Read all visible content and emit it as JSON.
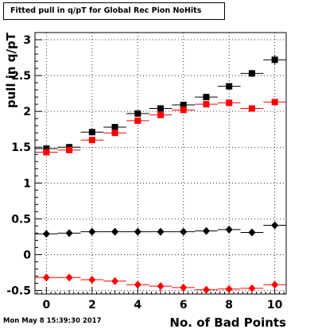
{
  "chart_data": {
    "type": "scatter",
    "title": "Fitted pull in q/pT for Global Rec Pion NoHits",
    "xlabel": "No. of Bad Points",
    "ylabel": "pull in q/pT",
    "xlim": [
      -0.5,
      10.5
    ],
    "ylim": [
      -0.55,
      3.1
    ],
    "x_ticks": [
      0,
      2,
      4,
      6,
      8,
      10
    ],
    "y_ticks": [
      -0.5,
      0,
      0.5,
      1,
      1.5,
      2,
      2.5,
      3
    ],
    "y_tick_labels": [
      "-0.5",
      "0",
      "0.5",
      "1",
      "1.5",
      "2",
      "2.5",
      "3"
    ],
    "grid": true,
    "series": [
      {
        "marker": "square",
        "color": "#000000",
        "x": [
          0,
          1,
          2,
          3,
          4,
          5,
          6,
          7,
          8,
          9,
          10
        ],
        "y": [
          1.48,
          1.5,
          1.71,
          1.78,
          1.97,
          2.04,
          2.09,
          2.2,
          2.35,
          2.53,
          2.72
        ],
        "yerr": [
          0.02,
          0.02,
          0.03,
          0.03,
          0.03,
          0.03,
          0.03,
          0.04,
          0.04,
          0.05,
          0.07
        ]
      },
      {
        "marker": "square",
        "color": "#ff0000",
        "x": [
          0,
          1,
          2,
          3,
          4,
          5,
          6,
          7,
          8,
          9,
          10
        ],
        "y": [
          1.43,
          1.46,
          1.6,
          1.7,
          1.87,
          1.95,
          2.02,
          2.1,
          2.12,
          2.04,
          2.13
        ],
        "yerr": [
          0.02,
          0.02,
          0.02,
          0.02,
          0.02,
          0.02,
          0.02,
          0.02,
          0.02,
          0.02,
          0.02
        ]
      },
      {
        "marker": "diamond",
        "color": "#000000",
        "x": [
          0,
          1,
          2,
          3,
          4,
          5,
          6,
          7,
          8,
          9,
          10
        ],
        "y": [
          0.29,
          0.3,
          0.32,
          0.32,
          0.32,
          0.32,
          0.32,
          0.33,
          0.35,
          0.31,
          0.41
        ],
        "yerr": [
          0.01,
          0.01,
          0.01,
          0.01,
          0.01,
          0.01,
          0.01,
          0.01,
          0.02,
          0.02,
          0.03
        ]
      },
      {
        "marker": "diamond",
        "color": "#ff0000",
        "x": [
          0,
          1,
          2,
          3,
          4,
          5,
          6,
          7,
          8,
          9,
          10
        ],
        "y": [
          -0.32,
          -0.32,
          -0.35,
          -0.37,
          -0.42,
          -0.44,
          -0.46,
          -0.49,
          -0.48,
          -0.47,
          -0.42
        ],
        "yerr": [
          0.01,
          0.01,
          0.01,
          0.01,
          0.01,
          0.01,
          0.01,
          0.01,
          0.01,
          0.01,
          0.01
        ]
      }
    ]
  },
  "footer": {
    "timestamp": "Mon May  8 15:39:30 2017"
  }
}
